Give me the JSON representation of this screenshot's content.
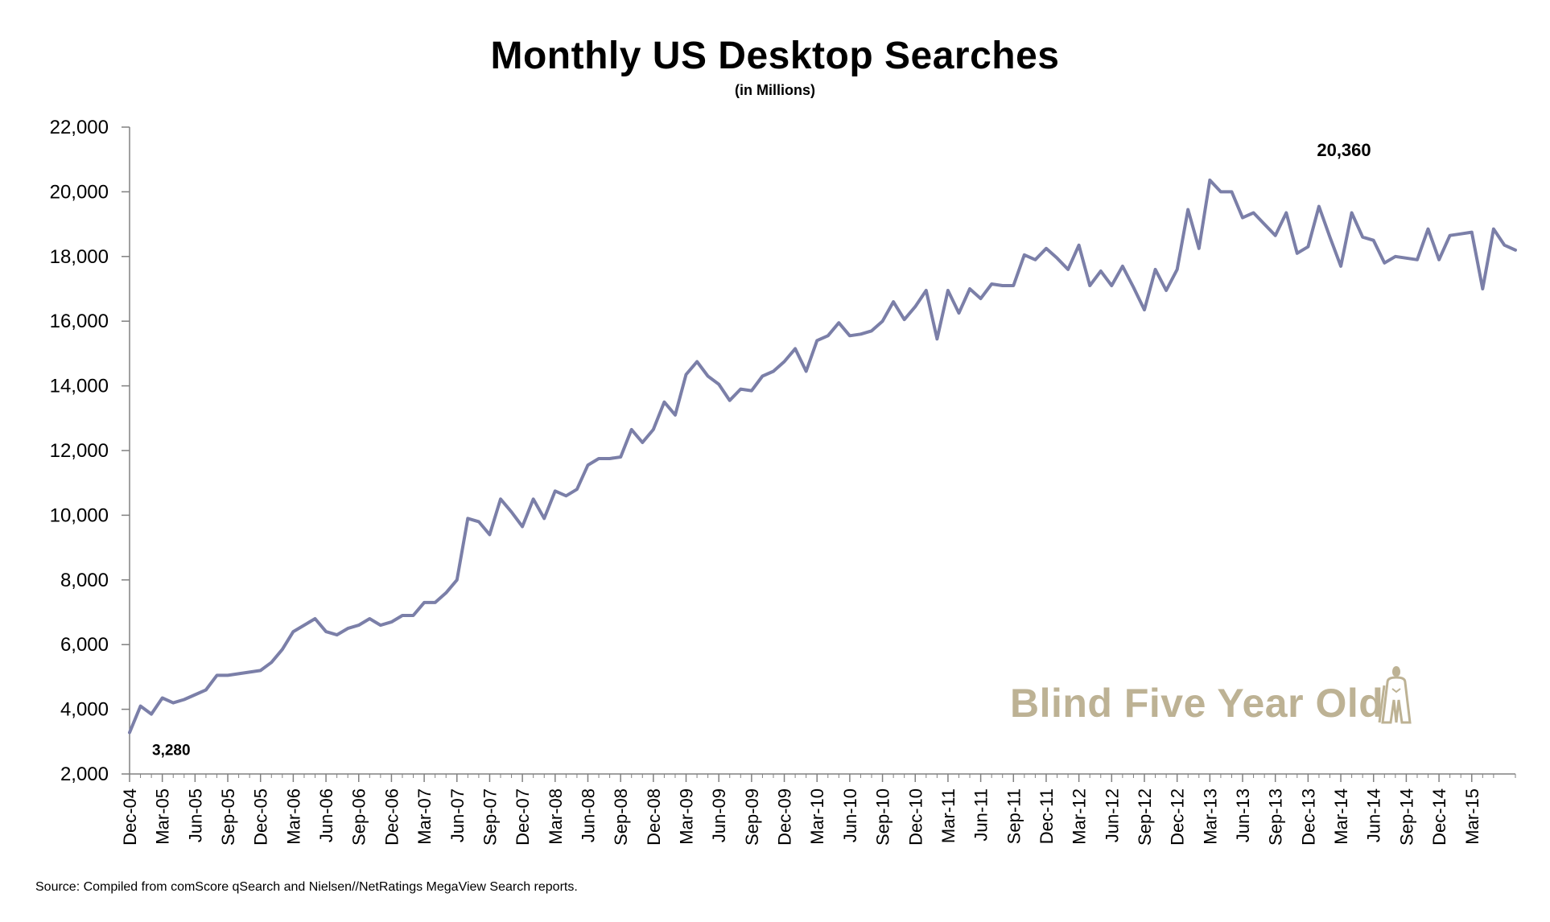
{
  "chart_data": {
    "type": "line",
    "title": "Monthly US Desktop Searches",
    "subtitle": "(in Millions)",
    "xlabel": "",
    "ylabel": "",
    "ylim": [
      2000,
      22000
    ],
    "yticks": [
      2000,
      4000,
      6000,
      8000,
      10000,
      12000,
      14000,
      16000,
      18000,
      20000,
      22000
    ],
    "ytick_labels": [
      "2,000",
      "4,000",
      "6,000",
      "8,000",
      "10,000",
      "12,000",
      "14,000",
      "16,000",
      "18,000",
      "20,000",
      "22,000"
    ],
    "xtick_labels": [
      "Dec-04",
      "Mar-05",
      "Jun-05",
      "Sep-05",
      "Dec-05",
      "Mar-06",
      "Jun-06",
      "Sep-06",
      "Dec-06",
      "Mar-07",
      "Jun-07",
      "Sep-07",
      "Dec-07",
      "Mar-08",
      "Jun-08",
      "Sep-08",
      "Dec-08",
      "Mar-09",
      "Jun-09",
      "Sep-09",
      "Dec-09",
      "Mar-10",
      "Jun-10",
      "Sep-10",
      "Dec-10",
      "Mar-11",
      "Jun-11",
      "Sep-11",
      "Dec-11",
      "Mar-12",
      "Jun-12",
      "Sep-12",
      "Dec-12",
      "Mar-13",
      "Jun-13",
      "Sep-13",
      "Dec-13",
      "Mar-14",
      "Jun-14",
      "Sep-14",
      "Dec-14",
      "Mar-15"
    ],
    "grid": false,
    "line_color": "#7b7fa8",
    "series": [
      {
        "values": [
          3280,
          4100,
          3850,
          4350,
          4200,
          4300,
          4450,
          4600,
          5050,
          5050,
          5100,
          5150,
          5200,
          5450,
          5850,
          6400,
          6600,
          6800,
          6400,
          6300,
          6500,
          6600,
          6800,
          6600,
          6700,
          6900,
          6900,
          7300,
          7300,
          7600,
          8000,
          9900,
          9800,
          9400,
          10500,
          10100,
          9650,
          10500,
          9900,
          10750,
          10600,
          10800,
          11550,
          11750,
          11750,
          11800,
          12650,
          12250,
          12650,
          13500,
          13100,
          14350,
          14750,
          14300,
          14050,
          13550,
          13900,
          13850,
          14300,
          14450,
          14750,
          15150,
          14450,
          15400,
          15550,
          15950,
          15550,
          15600,
          15700,
          16000,
          16600,
          16050,
          16450,
          16950,
          15450,
          16950,
          16250,
          17000,
          16700,
          17150,
          17100,
          17100,
          18050,
          17900,
          18250,
          17950,
          17600,
          18350,
          17100,
          17550,
          17100,
          17700,
          17050,
          16350,
          17600,
          16950,
          17600,
          19450,
          18250,
          20360,
          20000,
          20000,
          19200,
          19350,
          19000,
          18650,
          19350,
          18100,
          18300,
          19550,
          18600,
          17700,
          19350,
          18600,
          18500,
          17800,
          18000,
          17950,
          17900,
          18850,
          17900,
          18650,
          18700,
          18750,
          17000,
          18850,
          18350,
          18200
        ]
      }
    ],
    "annotations": [
      {
        "label": "3,280",
        "index": 0
      },
      {
        "label": "20,360",
        "index": 99
      }
    ]
  },
  "source_note": "Source: Compiled from comScore qSearch and Nielsen//NetRatings MegaView Search reports.",
  "watermark": "Blind Five Year Old",
  "watermark_color": "#bdb294"
}
